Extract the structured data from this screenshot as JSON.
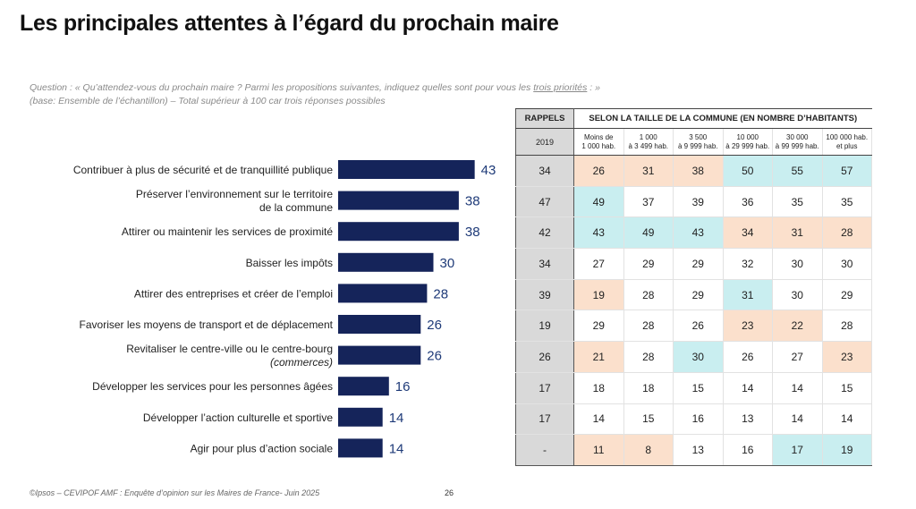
{
  "title": "Les principales attentes à l’égard du prochain maire",
  "question": {
    "line1_prefix": "Question : « Qu’attendez-vous du prochain maire ? Parmi les propositions suivantes, indiquez quelles sont pour vous les ",
    "line1_underlined": "trois priorités",
    "line1_suffix": " : »",
    "line2": "(base: Ensemble de l’échantillon) – Total supérieur à 100 car trois réponses possibles"
  },
  "chart_data": {
    "type": "bar",
    "orientation": "horizontal",
    "categories": [
      [
        "Contribuer à plus de sécurité et de tranquillité publique"
      ],
      [
        "Préserver l’environnement sur le territoire",
        "de la commune"
      ],
      [
        "Attirer ou maintenir les services de proximité"
      ],
      [
        "Baisser les impôts"
      ],
      [
        "Attirer des entreprises et créer de l’emploi"
      ],
      [
        "Favoriser les moyens de transport et de déplacement"
      ],
      [
        "Revitaliser le centre-ville ou le centre-bourg",
        "(commerces)"
      ],
      [
        "Développer les services pour les personnes âgées"
      ],
      [
        "Développer l’action culturelle et sportive"
      ],
      [
        "Agir pour plus d’action sociale"
      ]
    ],
    "values": [
      43,
      38,
      38,
      30,
      28,
      26,
      26,
      16,
      14,
      14
    ],
    "bar_color": "#15245a",
    "value_color": "#1e3a78"
  },
  "table": {
    "header_rappels": "RAPPELS",
    "header_size": "SELON LA TAILLE DE LA COMMUNE (EN NOMBRE D’HABITANTS)",
    "rappels_year": "2019",
    "size_columns": [
      [
        "Moins de",
        "1 000 hab."
      ],
      [
        "1 000",
        "à 3 499 hab."
      ],
      [
        "3 500",
        "à 9 999 hab."
      ],
      [
        "10 000",
        "à 29 999 hab."
      ],
      [
        "30 000",
        "à 99 999 hab."
      ],
      [
        "100 000 hab.",
        "et plus"
      ]
    ],
    "rows": [
      {
        "rappel": "34",
        "cells": [
          "26",
          "31",
          "38",
          "50",
          "55",
          "57"
        ],
        "hl": [
          "lo",
          "lo",
          "lo",
          "hi",
          "hi",
          "hi"
        ]
      },
      {
        "rappel": "47",
        "cells": [
          "49",
          "37",
          "39",
          "36",
          "35",
          "35"
        ],
        "hl": [
          "hi",
          "",
          "",
          "",
          "",
          ""
        ]
      },
      {
        "rappel": "42",
        "cells": [
          "43",
          "49",
          "43",
          "34",
          "31",
          "28"
        ],
        "hl": [
          "hi",
          "hi",
          "hi",
          "lo",
          "lo",
          "lo"
        ]
      },
      {
        "rappel": "34",
        "cells": [
          "27",
          "29",
          "29",
          "32",
          "30",
          "30"
        ],
        "hl": [
          "",
          "",
          "",
          "",
          "",
          ""
        ]
      },
      {
        "rappel": "39",
        "cells": [
          "19",
          "28",
          "29",
          "31",
          "30",
          "29"
        ],
        "hl": [
          "lo",
          "",
          "",
          "hi",
          "",
          ""
        ]
      },
      {
        "rappel": "19",
        "cells": [
          "29",
          "28",
          "26",
          "23",
          "22",
          "28"
        ],
        "hl": [
          "",
          "",
          "",
          "lo",
          "lo",
          ""
        ]
      },
      {
        "rappel": "26",
        "cells": [
          "21",
          "28",
          "30",
          "26",
          "27",
          "23"
        ],
        "hl": [
          "lo",
          "",
          "hi",
          "",
          "",
          "lo"
        ]
      },
      {
        "rappel": "17",
        "cells": [
          "18",
          "18",
          "15",
          "14",
          "14",
          "15"
        ],
        "hl": [
          "",
          "",
          "",
          "",
          "",
          ""
        ]
      },
      {
        "rappel": "17",
        "cells": [
          "14",
          "15",
          "16",
          "13",
          "14",
          "14"
        ],
        "hl": [
          "",
          "",
          "",
          "",
          "",
          ""
        ]
      },
      {
        "rappel": "-",
        "cells": [
          "11",
          "8",
          "13",
          "16",
          "17",
          "19"
        ],
        "hl": [
          "lo",
          "lo",
          "",
          "",
          "hi",
          "hi"
        ]
      }
    ],
    "colors": {
      "high": "#c9eef0",
      "low": "#fbe0cc",
      "rappels_bg": "#d9d9d9"
    }
  },
  "footer": "©Ipsos – CEVIPOF AMF : Enquête d’opinion sur les Maires de France- Juin 2025",
  "page_number": "26"
}
